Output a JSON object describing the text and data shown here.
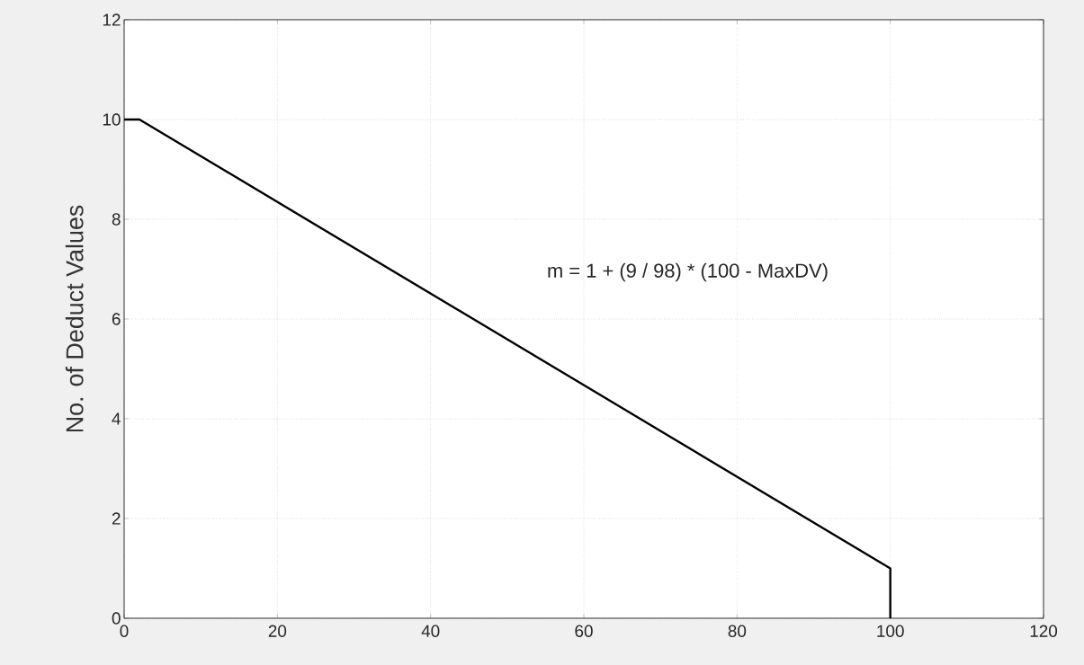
{
  "chart_data": {
    "type": "line",
    "ylabel": "No. of Deduct Values",
    "x": [
      0,
      2,
      100,
      100
    ],
    "series": [
      {
        "color": "#000000",
        "values": [
          10,
          10,
          1,
          0
        ]
      }
    ],
    "xlim": [
      0,
      120
    ],
    "xticks": [
      0,
      20,
      40,
      60,
      80,
      100,
      120
    ],
    "ylim": [
      0,
      12
    ],
    "yticks": [
      0,
      2,
      4,
      6,
      8,
      10,
      12
    ],
    "grid": true,
    "line_style": "solid",
    "marker": "none",
    "annotations": [
      "m = 1 + (9 / 98) * (100 - MaxDV)"
    ]
  }
}
